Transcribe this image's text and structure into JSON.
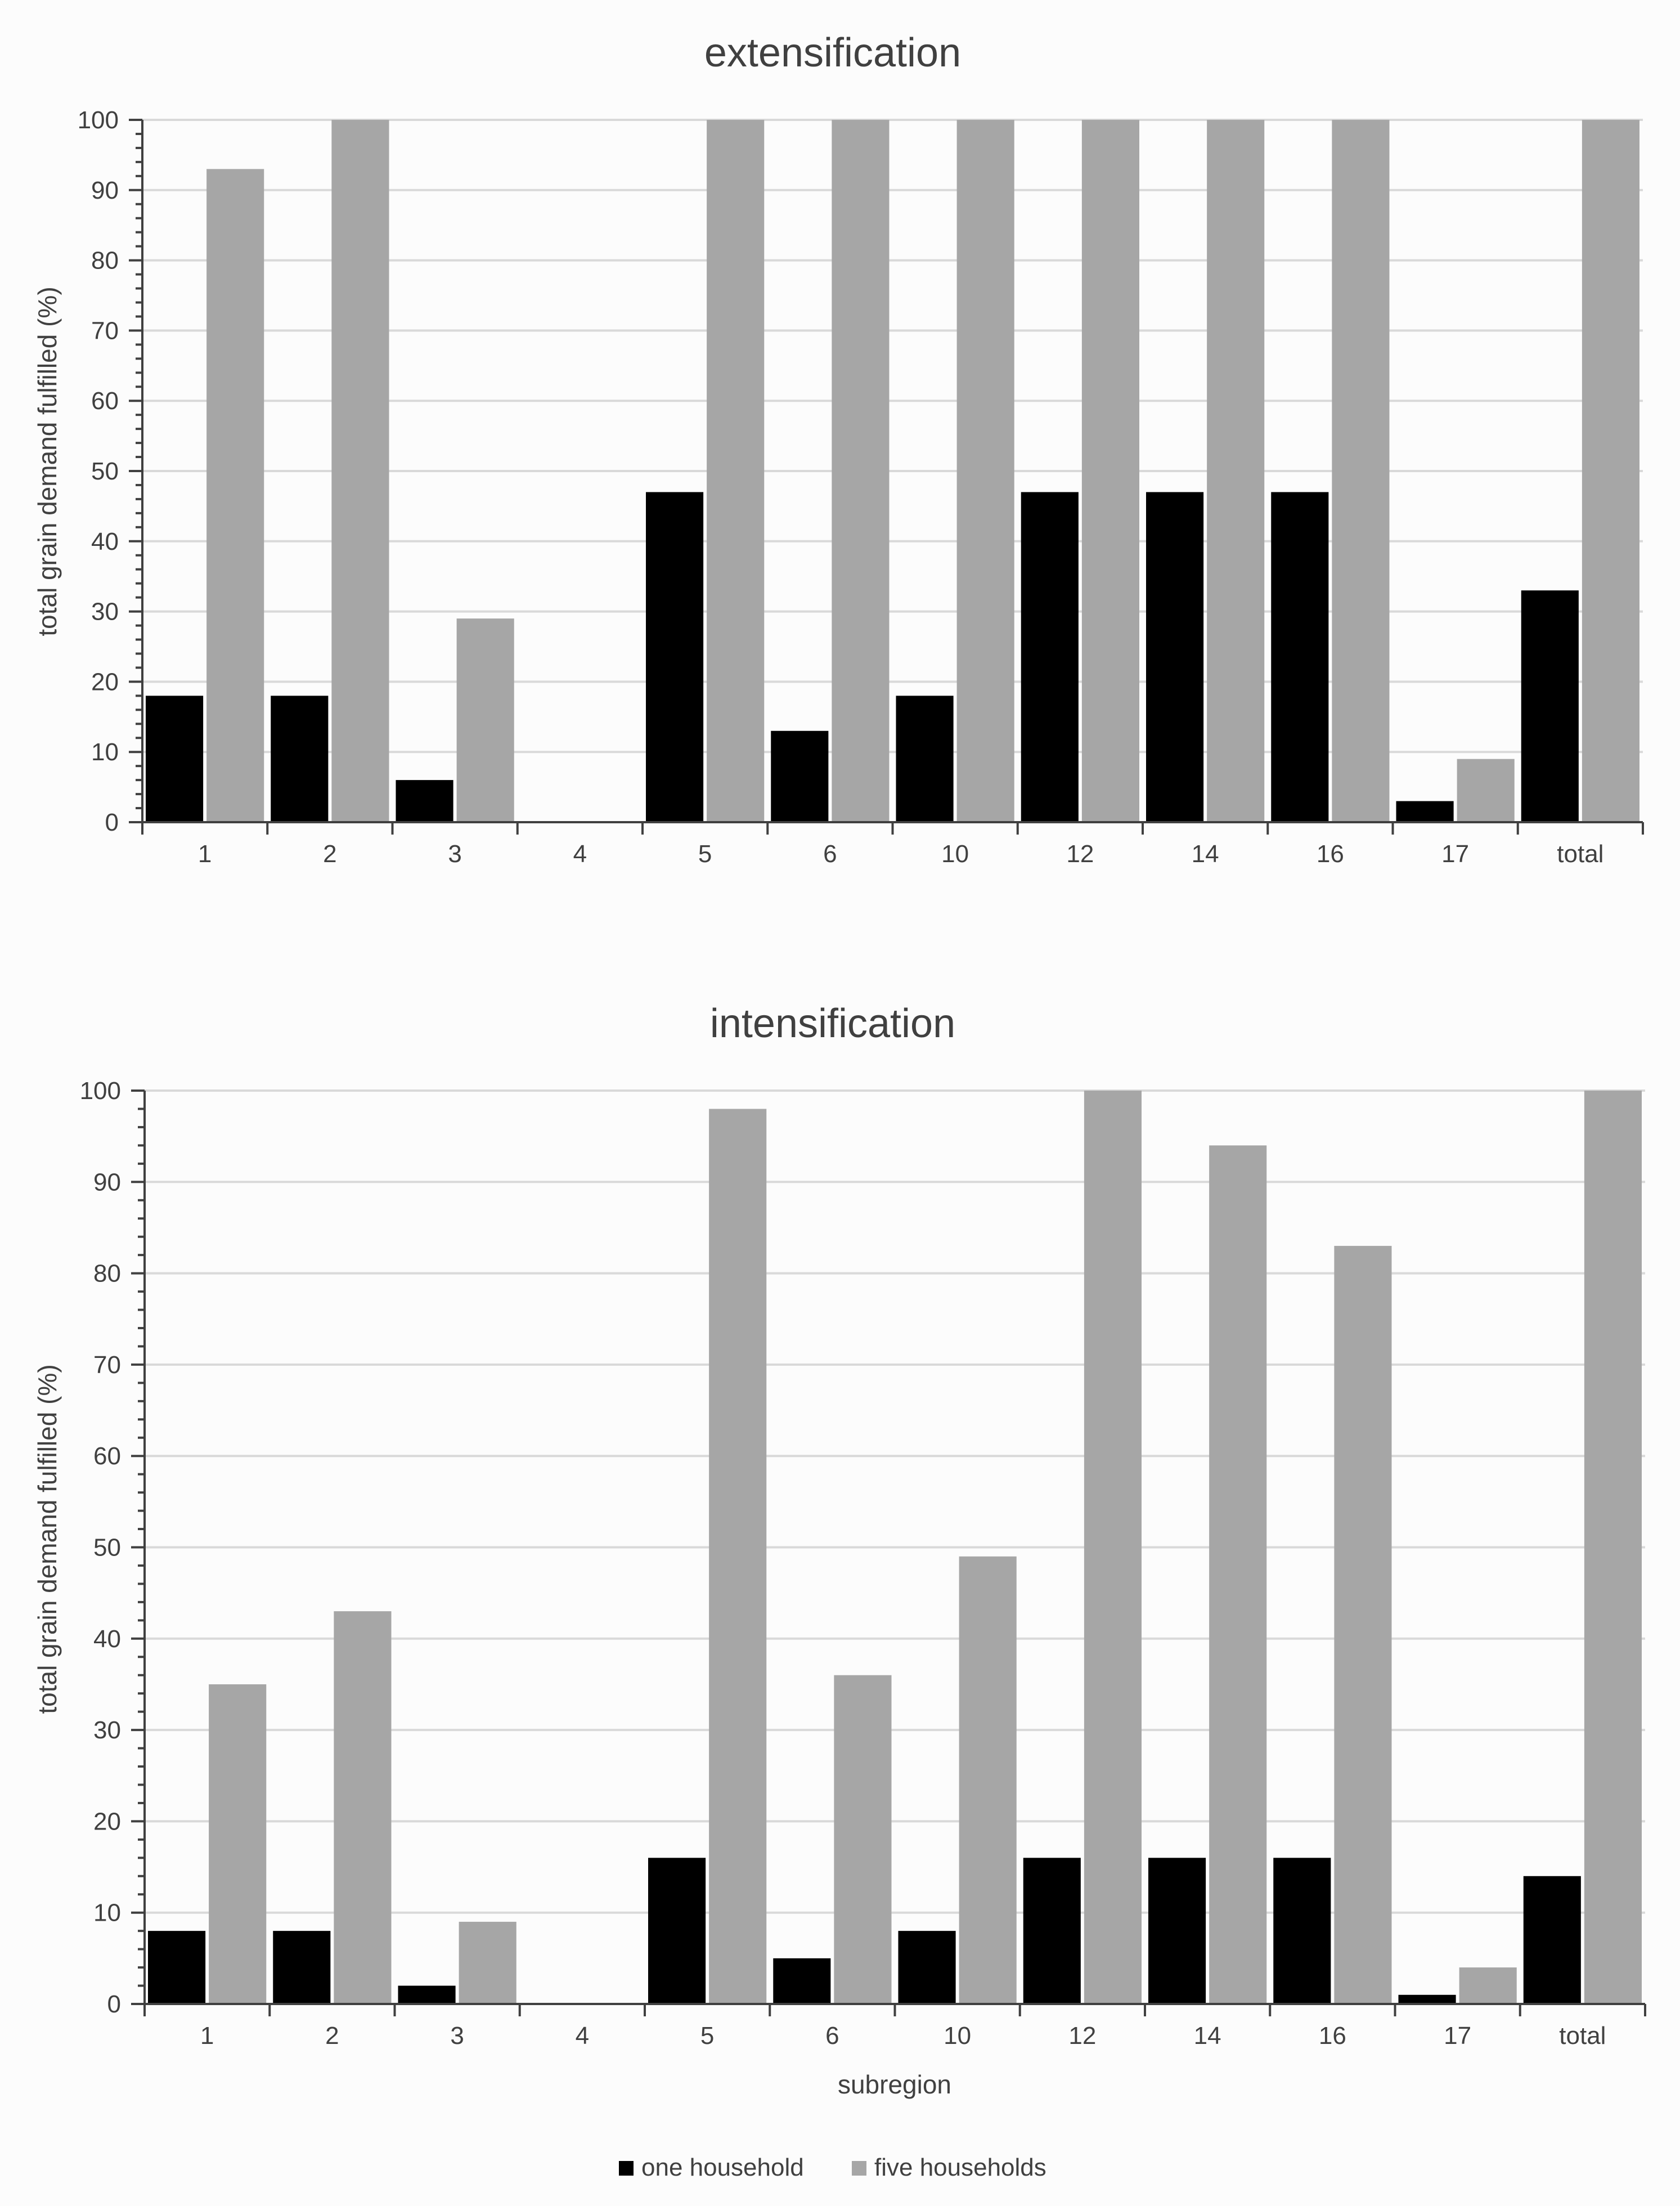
{
  "chart_data": [
    {
      "type": "bar",
      "title": "extensification",
      "ylabel": "total grain demand fulfilled (%)",
      "xlabel": "",
      "ylim": [
        0,
        100
      ],
      "yticks": [
        "0",
        "10",
        "20",
        "30",
        "40",
        "50",
        "60",
        "70",
        "80",
        "90",
        "100"
      ],
      "categories": [
        "1",
        "2",
        "3",
        "4",
        "5",
        "6",
        "10",
        "12",
        "14",
        "16",
        "17",
        "total"
      ],
      "series": [
        {
          "name": "one household",
          "color": "#000000",
          "values": [
            18,
            18,
            6,
            0,
            47,
            13,
            18,
            47,
            47,
            47,
            3,
            33
          ]
        },
        {
          "name": "five households",
          "color": "#a6a6a6",
          "values": [
            93,
            100,
            29,
            0,
            100,
            100,
            100,
            100,
            100,
            100,
            9,
            100
          ]
        }
      ],
      "grid": true
    },
    {
      "type": "bar",
      "title": "intensification",
      "ylabel": "total grain demand fulfilled (%)",
      "xlabel": "subregion",
      "ylim": [
        0,
        100
      ],
      "yticks": [
        "0",
        "10",
        "20",
        "30",
        "40",
        "50",
        "60",
        "70",
        "80",
        "90",
        "100"
      ],
      "categories": [
        "1",
        "2",
        "3",
        "4",
        "5",
        "6",
        "10",
        "12",
        "14",
        "16",
        "17",
        "total"
      ],
      "series": [
        {
          "name": "one household",
          "color": "#000000",
          "values": [
            8,
            8,
            2,
            0,
            16,
            5,
            8,
            16,
            16,
            16,
            1,
            14
          ]
        },
        {
          "name": "five households",
          "color": "#a6a6a6",
          "values": [
            35,
            43,
            9,
            0,
            98,
            36,
            49,
            100,
            94,
            83,
            4,
            100
          ]
        }
      ],
      "grid": true
    }
  ],
  "legend": {
    "items": [
      {
        "label": "one household",
        "color": "#000000"
      },
      {
        "label": "five households",
        "color": "#a6a6a6"
      }
    ],
    "placement": "bottom-center"
  }
}
